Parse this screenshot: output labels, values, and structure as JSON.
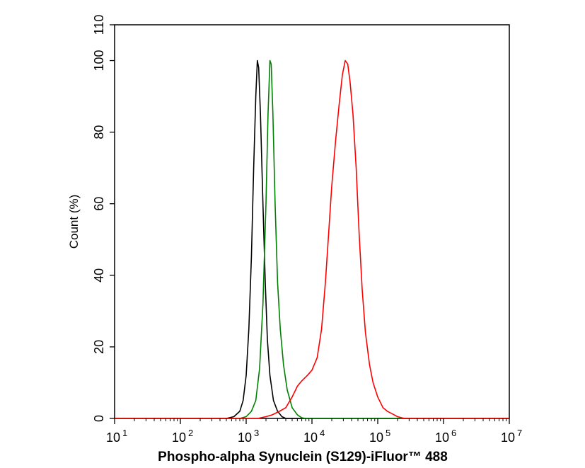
{
  "chart_data": {
    "type": "line",
    "xlabel": "Phospho-alpha Synuclein (S129)-iFluor™ 488",
    "ylabel": "Count  (%)",
    "x_scale": "log",
    "xlim": [
      10,
      10000000
    ],
    "ylim": [
      0,
      110
    ],
    "x_ticks": [
      {
        "base": "10",
        "exp": "1",
        "value": 10
      },
      {
        "base": "10",
        "exp": "2",
        "value": 100
      },
      {
        "base": "10",
        "exp": "3",
        "value": 1000
      },
      {
        "base": "10",
        "exp": "4",
        "value": 10000
      },
      {
        "base": "10",
        "exp": "5",
        "value": 100000
      },
      {
        "base": "10",
        "exp": "6",
        "value": 1000000
      },
      {
        "base": "10",
        "exp": "7",
        "value": 10000000
      }
    ],
    "y_ticks": [
      0,
      20,
      40,
      60,
      80,
      100,
      110
    ],
    "grid": false,
    "series": [
      {
        "color": "#000000",
        "points": [
          [
            10,
            0
          ],
          [
            500,
            0
          ],
          [
            650,
            0.5
          ],
          [
            800,
            2
          ],
          [
            900,
            5
          ],
          [
            1000,
            12
          ],
          [
            1100,
            25
          ],
          [
            1200,
            45
          ],
          [
            1300,
            70
          ],
          [
            1400,
            90
          ],
          [
            1480,
            100
          ],
          [
            1550,
            98
          ],
          [
            1650,
            85
          ],
          [
            1800,
            60
          ],
          [
            1950,
            38
          ],
          [
            2100,
            22
          ],
          [
            2300,
            12
          ],
          [
            2600,
            5
          ],
          [
            3000,
            2
          ],
          [
            3500,
            0.5
          ],
          [
            4000,
            0
          ],
          [
            10000000,
            0
          ]
        ]
      },
      {
        "color": "#008000",
        "points": [
          [
            10,
            0
          ],
          [
            800,
            0
          ],
          [
            1000,
            0.5
          ],
          [
            1200,
            2
          ],
          [
            1400,
            5
          ],
          [
            1600,
            14
          ],
          [
            1800,
            32
          ],
          [
            2000,
            60
          ],
          [
            2150,
            85
          ],
          [
            2300,
            100
          ],
          [
            2400,
            99
          ],
          [
            2550,
            85
          ],
          [
            2750,
            60
          ],
          [
            3000,
            38
          ],
          [
            3300,
            25
          ],
          [
            3700,
            15
          ],
          [
            4200,
            8
          ],
          [
            5000,
            3
          ],
          [
            6000,
            1
          ],
          [
            7000,
            0.2
          ],
          [
            8000,
            0
          ],
          [
            10000000,
            0
          ]
        ]
      },
      {
        "color": "#ff0000",
        "points": [
          [
            10,
            0
          ],
          [
            1500,
            0
          ],
          [
            2000,
            0.5
          ],
          [
            2500,
            1
          ],
          [
            3200,
            2
          ],
          [
            4000,
            3
          ],
          [
            5000,
            6
          ],
          [
            6000,
            9
          ],
          [
            7000,
            10.5
          ],
          [
            8500,
            12
          ],
          [
            10000,
            13.5
          ],
          [
            12000,
            17
          ],
          [
            14000,
            25
          ],
          [
            16000,
            38
          ],
          [
            18000,
            52
          ],
          [
            20000,
            65
          ],
          [
            23000,
            78
          ],
          [
            26000,
            88
          ],
          [
            29000,
            96
          ],
          [
            32000,
            100
          ],
          [
            35000,
            99
          ],
          [
            38000,
            94
          ],
          [
            42000,
            85
          ],
          [
            47000,
            70
          ],
          [
            52000,
            52
          ],
          [
            58000,
            36
          ],
          [
            65000,
            24
          ],
          [
            75000,
            15
          ],
          [
            85000,
            10
          ],
          [
            100000,
            6
          ],
          [
            120000,
            3
          ],
          [
            140000,
            2
          ],
          [
            170000,
            1.2
          ],
          [
            200000,
            0.5
          ],
          [
            230000,
            0.2
          ],
          [
            260000,
            0
          ],
          [
            10000000,
            0
          ]
        ]
      }
    ]
  }
}
